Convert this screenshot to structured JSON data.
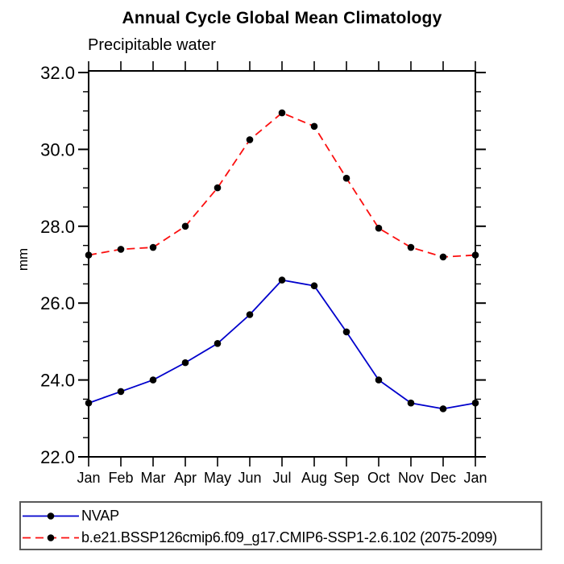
{
  "chart_data": {
    "type": "line",
    "title": "Annual Cycle Global Mean Climatology",
    "subtitle": "Precipitable water",
    "xlabel": "",
    "ylabel": "mm",
    "categories": [
      "Jan",
      "Feb",
      "Mar",
      "Apr",
      "May",
      "Jun",
      "Jul",
      "Aug",
      "Sep",
      "Oct",
      "Nov",
      "Dec",
      "Jan"
    ],
    "ylim": [
      22.0,
      32.0
    ],
    "ytick_values": [
      22.0,
      24.0,
      26.0,
      28.0,
      30.0,
      32.0
    ],
    "ytick_labels": [
      "22.0",
      "24.0",
      "26.0",
      "28.0",
      "30.0",
      "32.0"
    ],
    "ytick_minor_step": 0.5,
    "grid": false,
    "legend_position": "bottom",
    "frame_color": "#000000",
    "marker": "filled-circle",
    "marker_color": "#000000",
    "series": [
      {
        "name": "NVAP",
        "color": "#0000cc",
        "style": "solid",
        "values": [
          23.4,
          23.7,
          24.0,
          24.45,
          24.95,
          25.7,
          26.6,
          26.45,
          25.25,
          24.0,
          23.4,
          23.25,
          23.4
        ]
      },
      {
        "name": "b.e21.BSSP126cmip6.f09_g17.CMIP6-SSP1-2.6.102 (2075-2099)",
        "color": "#fb0f0f",
        "style": "dashed",
        "values": [
          27.25,
          27.4,
          27.45,
          28.0,
          29.0,
          30.25,
          30.95,
          30.6,
          29.25,
          27.95,
          27.45,
          27.2,
          27.25
        ]
      }
    ]
  }
}
